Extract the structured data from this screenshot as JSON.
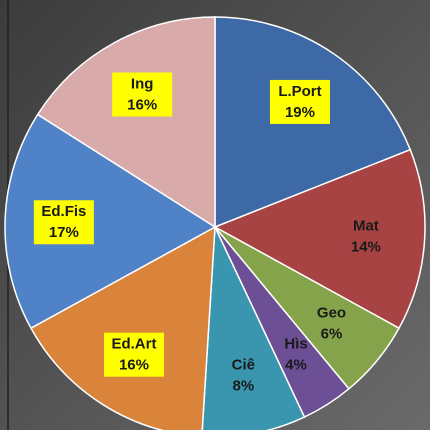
{
  "chart_data": {
    "type": "pie",
    "categories": [
      "L.Port",
      "Mat",
      "Geo",
      "Hìs",
      "Ciê",
      "Ed.Art",
      "Ed.Fis",
      "Ing"
    ],
    "values": [
      19,
      14,
      6,
      4,
      8,
      16,
      17,
      16
    ],
    "value_labels": [
      "19%",
      "14%",
      "6%",
      "4%",
      "8%",
      "16%",
      "17%",
      "16%"
    ],
    "colors": [
      "#3d6aa6",
      "#a84343",
      "#85a34a",
      "#6c4f94",
      "#3a95ae",
      "#d9843a",
      "#4f82c6",
      "#d9aaaa"
    ],
    "label_box": [
      true,
      false,
      false,
      false,
      false,
      true,
      true,
      true
    ],
    "label_box_color": "#ffff00"
  }
}
